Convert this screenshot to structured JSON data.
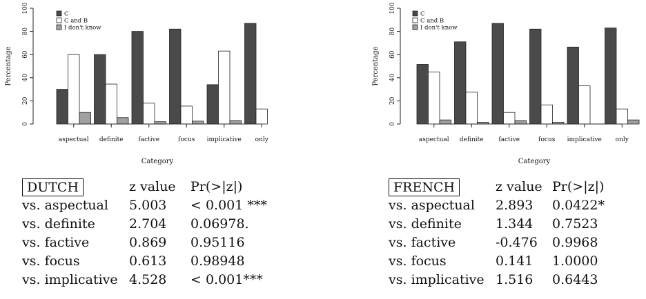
{
  "chart_data": [
    {
      "type": "bar",
      "title": "",
      "xlabel": "Category",
      "ylabel": "Percentage",
      "ylim": [
        0,
        100
      ],
      "yticks": [
        0,
        20,
        40,
        60,
        80,
        100
      ],
      "categories": [
        "aspectual",
        "definite",
        "factive",
        "focus",
        "implicative",
        "only"
      ],
      "legend_position": "top-left",
      "series": [
        {
          "name": "C",
          "color": "#4a4a4a",
          "values": [
            30,
            60,
            80,
            82,
            34,
            87
          ]
        },
        {
          "name": "C and B",
          "color": "#ffffff",
          "values": [
            60,
            34.5,
            18,
            15.5,
            63,
            13
          ]
        },
        {
          "name": "I don't know",
          "color": "#a0a0a0",
          "values": [
            10,
            5.5,
            2,
            2.5,
            3,
            0
          ]
        }
      ],
      "table": {
        "header": {
          "label": "DUTCH",
          "col2": "z value",
          "col3": "Pr(>|z|)"
        },
        "rows": [
          {
            "label": "vs. aspectual",
            "z": "5.003",
            "p": "< 0.001 ***"
          },
          {
            "label": "vs. definite",
            "z": "2.704",
            "p": "0.06978."
          },
          {
            "label": "vs. factive",
            "z": "0.869",
            "p": "0.95116"
          },
          {
            "label": "vs. focus",
            "z": "0.613",
            "p": "0.98948"
          },
          {
            "label": "vs. implicative",
            "z": "4.528",
            "p": "< 0.001***"
          }
        ]
      }
    },
    {
      "type": "bar",
      "title": "",
      "xlabel": "Category",
      "ylabel": "Percentage",
      "ylim": [
        0,
        100
      ],
      "yticks": [
        0,
        20,
        40,
        60,
        80,
        100
      ],
      "categories": [
        "aspectual",
        "definite",
        "factive",
        "focus",
        "implicative",
        "only"
      ],
      "legend_position": "top-left",
      "series": [
        {
          "name": "C",
          "color": "#4a4a4a",
          "values": [
            51.5,
            71,
            87,
            82,
            66.5,
            83
          ]
        },
        {
          "name": "C and B",
          "color": "#ffffff",
          "values": [
            45,
            27.5,
            10,
            16.5,
            33,
            13
          ]
        },
        {
          "name": "I don't know",
          "color": "#a0a0a0",
          "values": [
            3.5,
            1.5,
            3,
            1.5,
            0,
            3.5
          ]
        }
      ],
      "table": {
        "header": {
          "label": "FRENCH",
          "col2": "z value",
          "col3": "Pr(>|z|)"
        },
        "rows": [
          {
            "label": "vs. aspectual",
            "z": "2.893",
            "p": "0.0422*"
          },
          {
            "label": "vs. definite",
            "z": "1.344",
            "p": "0.7523"
          },
          {
            "label": "vs. factive",
            "z": "-0.476",
            "p": "0.9968"
          },
          {
            "label": "vs. focus",
            "z": "0.141",
            "p": "1.0000"
          },
          {
            "label": "vs. implicative",
            "z": "1.516",
            "p": "0.6443"
          }
        ]
      }
    }
  ]
}
